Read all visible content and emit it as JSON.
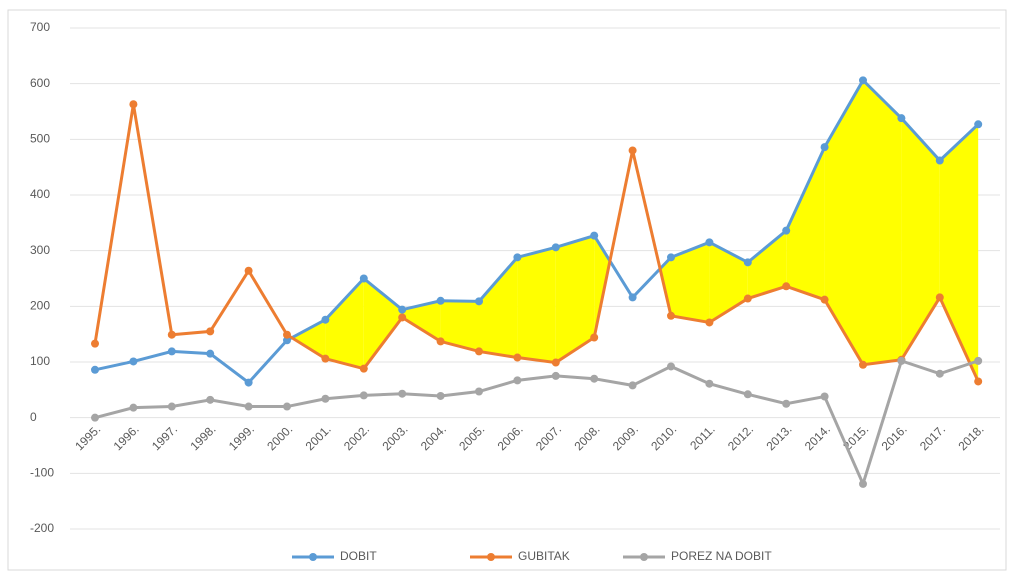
{
  "chart_data": {
    "type": "line",
    "categories": [
      "1995.",
      "1996.",
      "1997.",
      "1998.",
      "1999.",
      "2000.",
      "2001.",
      "2002.",
      "2003.",
      "2004.",
      "2005.",
      "2006.",
      "2007.",
      "2008.",
      "2009.",
      "2010.",
      "2011.",
      "2012.",
      "2013.",
      "2014.",
      "2015.",
      "2016.",
      "2017.",
      "2018."
    ],
    "series": [
      {
        "name": "DOBIT",
        "color": "#5b9bd5",
        "values": [
          86,
          101,
          119,
          115,
          63,
          139,
          176,
          250,
          194,
          210,
          209,
          288,
          306,
          327,
          216,
          288,
          315,
          279,
          336,
          486,
          606,
          538,
          462,
          527
        ]
      },
      {
        "name": "GUBITAK",
        "color": "#ed7d31",
        "values": [
          133,
          563,
          149,
          155,
          264,
          149,
          106,
          88,
          180,
          137,
          119,
          108,
          99,
          144,
          480,
          183,
          171,
          214,
          236,
          212,
          95,
          104,
          216,
          65
        ]
      },
      {
        "name": "POREZ NA DOBIT",
        "color": "#a5a5a5",
        "values": [
          0,
          18,
          20,
          32,
          20,
          20,
          34,
          40,
          43,
          39,
          47,
          67,
          75,
          70,
          58,
          92,
          61,
          42,
          25,
          38,
          -119,
          102,
          79,
          102
        ]
      }
    ],
    "fill_between_color": "#ffff00",
    "ylim": [
      -200,
      700
    ],
    "yticks": [
      -200,
      -100,
      0,
      100,
      200,
      300,
      400,
      500,
      600,
      700
    ],
    "grid": true,
    "legend": "bottom"
  }
}
